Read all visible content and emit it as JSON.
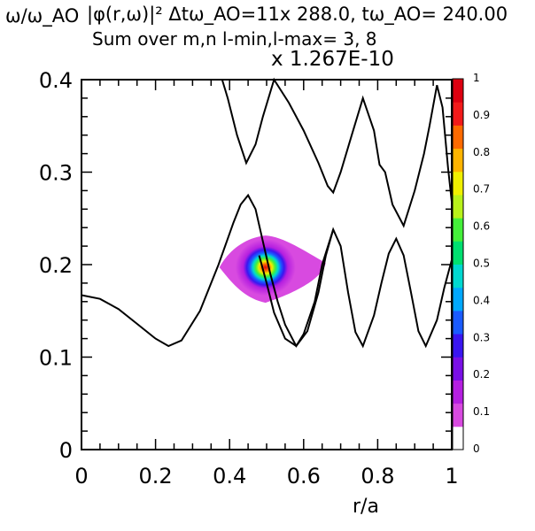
{
  "header": {
    "y_axis_title": "ω/ω_AO",
    "main_title": "|φ(r,ω)|²  Δtω_AO=11x 288.0, tω_AO= 240.00",
    "subtitle": "Sum over m,n l-min,l-max=  3,  8",
    "scale_factor": "x 1.267E-10"
  },
  "chart_data": {
    "type": "heatmap",
    "xlabel": "r/a",
    "ylabel": "ω/ω_AO",
    "xlim": [
      0,
      1
    ],
    "ylim": [
      0,
      0.4
    ],
    "x_ticks": [
      "0",
      "0.2",
      "0.4",
      "0.6",
      "0.8",
      "1"
    ],
    "y_ticks": [
      "0",
      "0.1",
      "0.2",
      "0.3",
      "0.4"
    ],
    "colorbar": {
      "ticks": [
        "0",
        "0.1",
        "0.2",
        "0.3",
        "0.4",
        "0.5",
        "0.6",
        "0.7",
        "0.8",
        "0.9",
        "1"
      ],
      "colors": [
        "#ffffff",
        "#d84ae0",
        "#b51fe0",
        "#7a10e6",
        "#3a16f0",
        "#1a5bff",
        "#00a8ff",
        "#00d8d0",
        "#00e070",
        "#44f03a",
        "#b8f21a",
        "#f0f000",
        "#ffb400",
        "#ff6a00",
        "#f21a1a",
        "#dd0010"
      ]
    },
    "hotspot": {
      "r": 0.497,
      "omega": 0.197,
      "peak": 1.0
    },
    "continuum_curves": [
      {
        "name": "upper",
        "x": [
          0.38,
          0.395,
          0.42,
          0.445,
          0.47,
          0.49,
          0.52,
          0.56,
          0.6,
          0.64,
          0.665,
          0.68,
          0.7,
          0.73,
          0.76,
          0.79,
          0.805,
          0.82,
          0.84,
          0.87,
          0.9,
          0.925,
          0.94,
          0.96,
          0.975,
          0.99,
          1.0
        ],
        "y": [
          0.4,
          0.38,
          0.34,
          0.31,
          0.33,
          0.36,
          0.4,
          0.375,
          0.345,
          0.31,
          0.285,
          0.278,
          0.3,
          0.34,
          0.38,
          0.345,
          0.308,
          0.3,
          0.265,
          0.242,
          0.28,
          0.32,
          0.35,
          0.394,
          0.37,
          0.305,
          0.268
        ]
      },
      {
        "name": "lower",
        "x": [
          0.0,
          0.05,
          0.1,
          0.15,
          0.2,
          0.235,
          0.27,
          0.32,
          0.37,
          0.41,
          0.43,
          0.45,
          0.47,
          0.49,
          0.51,
          0.53,
          0.55,
          0.58,
          0.61,
          0.64,
          0.66,
          0.68,
          0.7,
          0.72,
          0.74,
          0.76,
          0.79,
          0.81,
          0.83,
          0.85,
          0.87,
          0.89,
          0.91,
          0.93,
          0.96,
          0.98,
          1.0
        ],
        "y": [
          0.167,
          0.163,
          0.152,
          0.136,
          0.12,
          0.112,
          0.118,
          0.15,
          0.2,
          0.245,
          0.265,
          0.275,
          0.26,
          0.225,
          0.19,
          0.16,
          0.135,
          0.112,
          0.128,
          0.17,
          0.21,
          0.238,
          0.22,
          0.17,
          0.127,
          0.112,
          0.145,
          0.18,
          0.212,
          0.228,
          0.21,
          0.17,
          0.128,
          0.112,
          0.14,
          0.175,
          0.205
        ]
      },
      {
        "name": "lower-dip",
        "x": [
          0.48,
          0.5,
          0.52,
          0.55,
          0.58,
          0.6,
          0.63,
          0.65,
          0.68
        ],
        "y": [
          0.21,
          0.18,
          0.148,
          0.12,
          0.112,
          0.125,
          0.16,
          0.2,
          0.238
        ]
      }
    ]
  }
}
